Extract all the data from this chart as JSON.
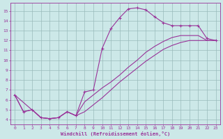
{
  "bg_color": "#cce8e8",
  "grid_color": "#99bbbb",
  "line_color": "#993399",
  "xlabel": "Windchill (Refroidissement éolien,°C)",
  "xlim": [
    -0.5,
    23.5
  ],
  "ylim": [
    3.5,
    15.8
  ],
  "xticks": [
    0,
    1,
    2,
    3,
    4,
    5,
    6,
    7,
    8,
    9,
    10,
    11,
    12,
    13,
    14,
    15,
    16,
    17,
    18,
    19,
    20,
    21,
    22,
    23
  ],
  "yticks": [
    4,
    5,
    6,
    7,
    8,
    9,
    10,
    11,
    12,
    13,
    14,
    15
  ],
  "curve_main_x": [
    0,
    1,
    2,
    3,
    4,
    5,
    6,
    7,
    8,
    9,
    10,
    11,
    12,
    13,
    14,
    15,
    16,
    17,
    18,
    19,
    20,
    21,
    22,
    23
  ],
  "curve_main_y": [
    6.5,
    4.8,
    5.0,
    4.2,
    4.1,
    4.2,
    4.8,
    4.4,
    6.8,
    7.0,
    11.2,
    13.2,
    14.3,
    15.2,
    15.3,
    15.1,
    14.4,
    13.8,
    13.5,
    13.5,
    13.5,
    13.5,
    12.2,
    12.0
  ],
  "curve_mid_x": [
    0,
    1,
    2,
    3,
    4,
    5,
    6,
    7,
    8,
    9,
    10,
    11,
    12,
    13,
    14,
    15,
    16,
    17,
    18,
    19,
    20,
    21,
    22,
    23
  ],
  "curve_mid_y": [
    6.5,
    4.8,
    5.0,
    4.2,
    4.1,
    4.2,
    4.8,
    4.4,
    5.8,
    6.5,
    7.2,
    7.8,
    8.5,
    9.3,
    10.0,
    10.8,
    11.4,
    11.9,
    12.3,
    12.5,
    12.5,
    12.5,
    12.0,
    12.0
  ],
  "curve_low_x": [
    0,
    3,
    4,
    5,
    6,
    7,
    8,
    9,
    10,
    11,
    12,
    13,
    14,
    15,
    16,
    17,
    18,
    19,
    20,
    21,
    22,
    23
  ],
  "curve_low_y": [
    6.5,
    4.2,
    4.1,
    4.2,
    4.8,
    4.4,
    4.8,
    5.5,
    6.2,
    7.0,
    7.8,
    8.5,
    9.2,
    9.9,
    10.5,
    11.1,
    11.5,
    11.8,
    12.0,
    12.0,
    12.0,
    12.0
  ]
}
